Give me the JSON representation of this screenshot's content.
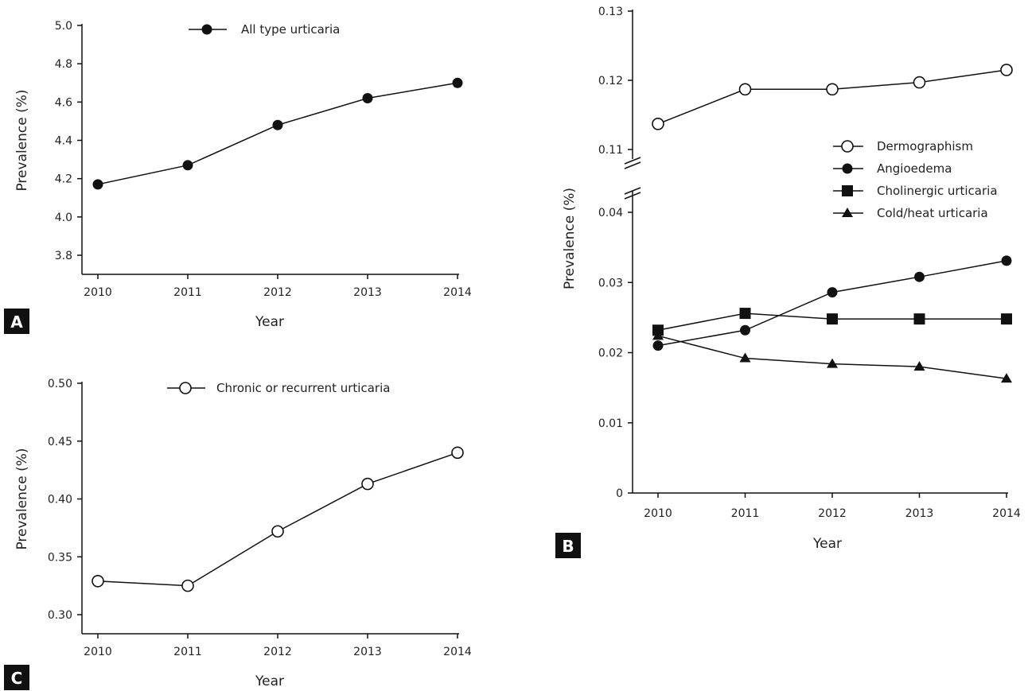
{
  "chart_data": [
    {
      "panel": "A",
      "type": "line",
      "xlabel": "Year",
      "ylabel": "Prevalence (%)",
      "x": [
        2010,
        2011,
        2012,
        2013,
        2014
      ],
      "ylim": [
        3.8,
        5.0
      ],
      "yticks": [
        "3.8",
        "4.0",
        "4.2",
        "4.4",
        "4.6",
        "4.8",
        "5.0"
      ],
      "series": [
        {
          "name": "All type urticaria",
          "marker": "filled-circle",
          "values": [
            4.17,
            4.27,
            4.48,
            4.62,
            4.7
          ]
        }
      ],
      "legend": "top-center"
    },
    {
      "panel": "B",
      "type": "line",
      "xlabel": "Year",
      "ylabel": "Prevalence (%)",
      "x": [
        2010,
        2011,
        2012,
        2013,
        2014
      ],
      "ylim_lower": [
        0,
        0.04
      ],
      "ylim_upper": [
        0.11,
        0.13
      ],
      "axis_break": true,
      "yticks_lower": [
        "0",
        "0.01",
        "0.02",
        "0.03",
        "0.04"
      ],
      "yticks_upper": [
        "0.11",
        "0.12",
        "0.13"
      ],
      "series": [
        {
          "name": "Dermographism",
          "marker": "open-circle",
          "values": [
            0.1137,
            0.1187,
            0.1187,
            0.1197,
            0.1215
          ]
        },
        {
          "name": "Angioedema",
          "marker": "filled-circle",
          "values": [
            0.021,
            0.0232,
            0.0286,
            0.0308,
            0.0331
          ]
        },
        {
          "name": "Cholinergic urticaria",
          "marker": "square",
          "values": [
            0.0232,
            0.0256,
            0.0248,
            0.0248,
            0.0248
          ]
        },
        {
          "name": "Cold/heat urticaria",
          "marker": "triangle",
          "values": [
            0.0224,
            0.0192,
            0.0184,
            0.018,
            0.0163
          ]
        }
      ],
      "legend": "right"
    },
    {
      "panel": "C",
      "type": "line",
      "xlabel": "Year",
      "ylabel": "Prevalence (%)",
      "x": [
        2010,
        2011,
        2012,
        2013,
        2014
      ],
      "ylim": [
        0.3,
        0.5
      ],
      "yticks": [
        "0.30",
        "0.35",
        "0.40",
        "0.45",
        "0.50"
      ],
      "series": [
        {
          "name": "Chronic or recurrent urticaria",
          "marker": "open-circle",
          "values": [
            0.329,
            0.325,
            0.372,
            0.413,
            0.44
          ]
        }
      ],
      "legend": "top-center"
    }
  ]
}
